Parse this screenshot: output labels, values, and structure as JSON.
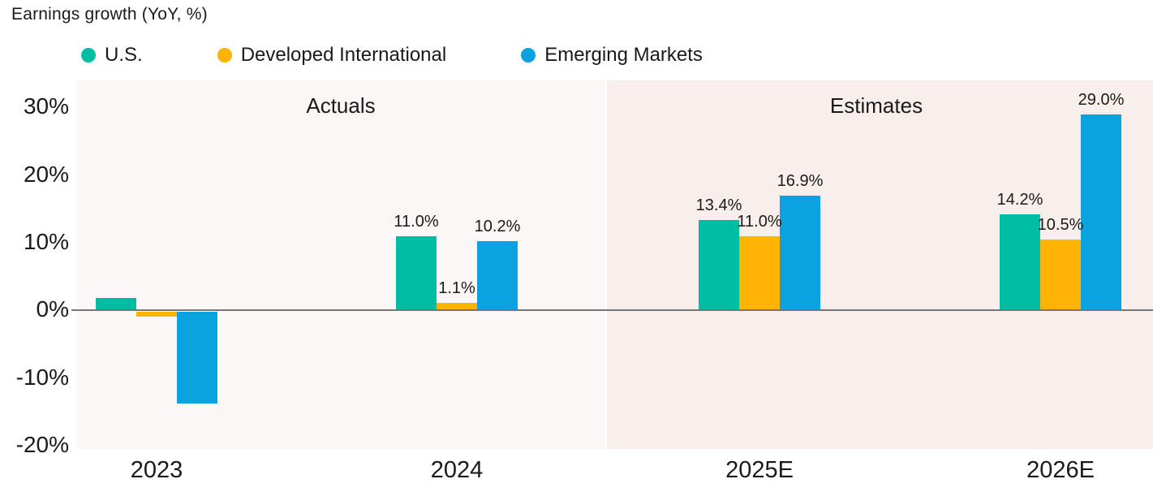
{
  "title": "Earnings growth (YoY, %)",
  "chart_data": {
    "type": "bar",
    "title": "Earnings growth (YoY, %)",
    "categories": [
      "2023",
      "2024",
      "2025E",
      "2026E"
    ],
    "series": [
      {
        "name": "U.S.",
        "color": "#00BDA4",
        "values": [
          1.8,
          11.0,
          13.4,
          14.2
        ],
        "value_labels": [
          "",
          "11.0%",
          "13.4%",
          "14.2%"
        ]
      },
      {
        "name": "Developed International",
        "color": "#FFB405",
        "values": [
          -0.7,
          1.1,
          11.0,
          10.5
        ],
        "value_labels": [
          "",
          "1.1%",
          "11.0%",
          "10.5%"
        ]
      },
      {
        "name": "Emerging Markets",
        "color": "#0AA3E0",
        "values": [
          -13.5,
          10.2,
          16.9,
          29.0
        ],
        "value_labels": [
          "",
          "10.2%",
          "16.9%",
          "29.0%"
        ]
      }
    ],
    "sections": [
      {
        "label": "Actuals",
        "categories": [
          "2023",
          "2024"
        ],
        "bg": "#FBF7F6"
      },
      {
        "label": "Estimates",
        "categories": [
          "2025E",
          "2026E"
        ],
        "bg": "#F8EFEC"
      }
    ],
    "y_axis": {
      "tick_labels": [
        "30%",
        "20%",
        "10%",
        "0%",
        "-10%",
        "-20%"
      ],
      "tick_values": [
        30,
        20,
        10,
        0,
        -10,
        -20
      ],
      "ylim": [
        -20.5,
        34
      ]
    },
    "xlabel": "",
    "ylabel": "",
    "grid": false,
    "legend_position": "top",
    "zero_line_color": "#757575",
    "text_color": "#1a1a1a"
  }
}
